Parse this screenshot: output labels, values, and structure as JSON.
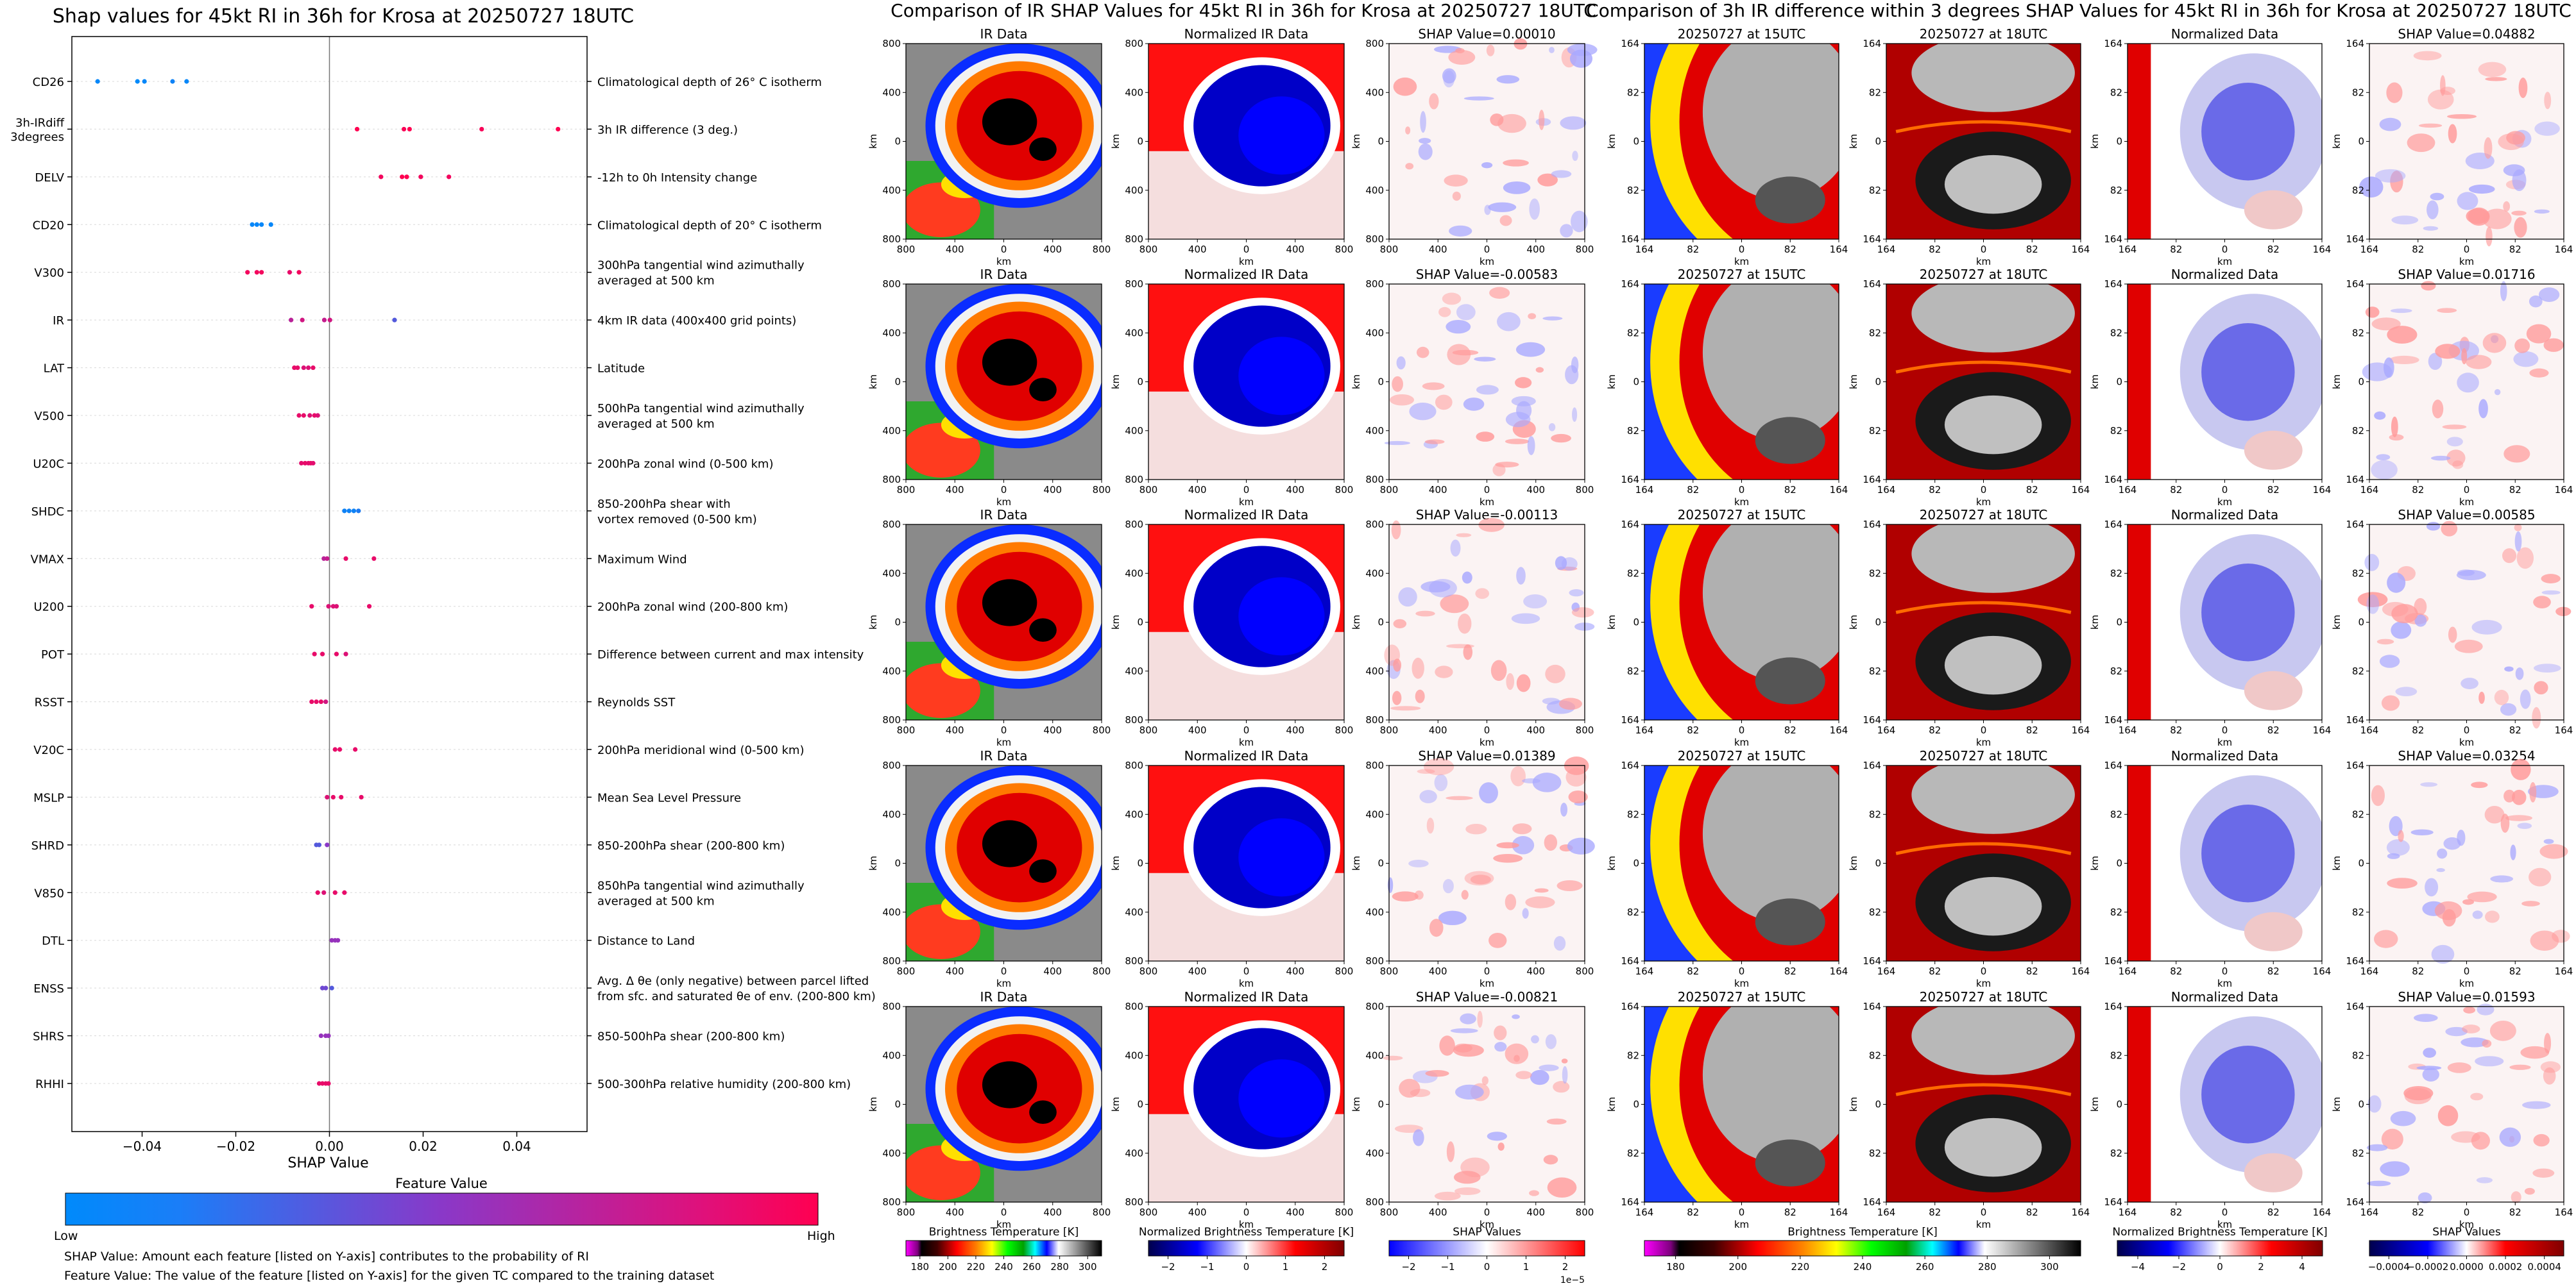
{
  "colors": {
    "feature_low": "#008afb",
    "feature_mid": "#8a38c8",
    "feature_high": "#ff0051",
    "gray_ir": "#808080"
  },
  "shap_panel": {
    "title": "Shap values for 45kt RI in 36h for Krosa at 20250727 18UTC",
    "xlabel": "SHAP Value",
    "colorbar": {
      "title": "Feature Value",
      "low": "Low",
      "high": "High"
    },
    "footnotes": [
      "SHAP Value: Amount each feature [listed on Y-axis] contributes to the probability of RI",
      "Feature Value: The value of the feature [listed on Y-axis] for the given TC compared to the training dataset"
    ]
  },
  "ir_panel": {
    "title": "Comparison of IR SHAP Values for 45kt RI in 36h for Krosa at 20250727 18UTC",
    "col_titles": [
      "IR Data",
      "Normalized IR Data"
    ],
    "shap_titles": [
      "SHAP Value=0.00010",
      "SHAP Value=-0.00583",
      "SHAP Value=-0.00113",
      "SHAP Value=0.01389",
      "SHAP Value=-0.00821"
    ],
    "xticks": [
      "800",
      "400",
      "0",
      "400",
      "800"
    ],
    "yticks": [
      "800",
      "400",
      "0",
      "400",
      "800"
    ],
    "axis_label": "km",
    "colorbars": [
      {
        "label": "Brightness Temperature [K]",
        "ticks": [
          "180",
          "200",
          "220",
          "240",
          "260",
          "280",
          "300"
        ]
      },
      {
        "label": "Normalized Brightness Temperature [K]",
        "ticks": [
          "−2",
          "−1",
          "0",
          "1",
          "2"
        ]
      },
      {
        "label": "SHAP Values",
        "ticks": [
          "−2",
          "−1",
          "0",
          "1",
          "2"
        ],
        "offset": "1e−5"
      }
    ]
  },
  "diff_panel": {
    "title": "Comparison of 3h IR difference within 3 degrees SHAP Values for 45kt RI in 36h for Krosa at 20250727 18UTC",
    "col_titles": [
      "20250727 at 15UTC",
      "20250727 at 18UTC",
      "Normalized Data"
    ],
    "shap_titles": [
      "SHAP Value=0.04882",
      "SHAP Value=0.01716",
      "SHAP Value=0.00585",
      "SHAP Value=0.03254",
      "SHAP Value=0.01593"
    ],
    "xticks": [
      "164",
      "82",
      "0",
      "82",
      "164"
    ],
    "yticks": [
      "164",
      "82",
      "0",
      "82",
      "164"
    ],
    "axis_label": "km",
    "colorbars": [
      {
        "label": "Brightness Temperature [K]",
        "ticks": [
          "180",
          "200",
          "220",
          "240",
          "260",
          "280",
          "300"
        ]
      },
      {
        "label": "Normalized Brightness Temperature [K]",
        "ticks": [
          "−4",
          "−2",
          "0",
          "2",
          "4"
        ]
      },
      {
        "label": "SHAP Values",
        "ticks": [
          "−0.0004",
          "−0.0002",
          "0.0000",
          "0.0002",
          "0.0004"
        ]
      }
    ]
  },
  "chart_data": {
    "type": "scatter",
    "title": "Shap values for 45kt RI in 36h for Krosa at 20250727 18UTC",
    "xlabel": "SHAP Value",
    "xlim": [
      -0.055,
      0.055
    ],
    "xticks": [
      -0.04,
      -0.02,
      0.0,
      0.02,
      0.04
    ],
    "xtick_labels": [
      "−0.04",
      "−0.02",
      "0.00",
      "0.02",
      "0.04"
    ],
    "features": [
      {
        "name": "CD26",
        "description": "Climatological depth of 26° C isotherm",
        "points": [
          [
            -0.0495,
            0.02
          ],
          [
            -0.041,
            0.0
          ],
          [
            -0.0395,
            0.02
          ],
          [
            -0.0335,
            0.05
          ],
          [
            -0.0305,
            0.02
          ]
        ]
      },
      {
        "name": "3h-IRdiff\n3degrees",
        "description": "3h IR difference (3 deg.)",
        "points": [
          [
            0.0059,
            1.0
          ],
          [
            0.0159,
            0.98
          ],
          [
            0.0171,
            1.0
          ],
          [
            0.0325,
            0.97
          ],
          [
            0.0488,
            1.0
          ]
        ]
      },
      {
        "name": "DELV",
        "description": "-12h to 0h Intensity change",
        "points": [
          [
            0.011,
            0.95
          ],
          [
            0.0155,
            1.0
          ],
          [
            0.0165,
            1.0
          ],
          [
            0.0195,
            0.95
          ],
          [
            0.0255,
            0.95
          ]
        ]
      },
      {
        "name": "CD20",
        "description": "Climatological depth of 20° C isotherm",
        "points": [
          [
            -0.0165,
            0.02
          ],
          [
            -0.0155,
            0.02
          ],
          [
            -0.0145,
            0.02
          ],
          [
            -0.0125,
            0.02
          ]
        ]
      },
      {
        "name": "V300",
        "description": "300hPa tangential wind azimuthally\naveraged at 500 km",
        "points": [
          [
            -0.0175,
            0.95
          ],
          [
            -0.0155,
            0.95
          ],
          [
            -0.0145,
            0.95
          ],
          [
            -0.0085,
            0.9
          ],
          [
            -0.0065,
            0.95
          ]
        ]
      },
      {
        "name": "IR",
        "description": "4km IR data (400x400 grid points)",
        "points": [
          [
            -0.0082,
            0.7
          ],
          [
            -0.0058,
            0.8
          ],
          [
            -0.0011,
            0.75
          ],
          [
            0.0001,
            0.8
          ],
          [
            0.0139,
            0.3
          ]
        ]
      },
      {
        "name": "LAT",
        "description": "Latitude",
        "points": [
          [
            -0.0075,
            0.9
          ],
          [
            -0.0068,
            0.9
          ],
          [
            -0.0055,
            0.85
          ],
          [
            -0.0045,
            0.85
          ],
          [
            -0.0035,
            0.9
          ]
        ]
      },
      {
        "name": "V500",
        "description": "500hPa tangential wind azimuthally\naveraged at 500 km",
        "points": [
          [
            -0.0065,
            0.9
          ],
          [
            -0.0055,
            0.9
          ],
          [
            -0.0042,
            0.85
          ],
          [
            -0.0032,
            0.9
          ],
          [
            -0.0025,
            0.85
          ]
        ]
      },
      {
        "name": "U20C",
        "description": "200hPa zonal wind (0-500 km)",
        "points": [
          [
            -0.006,
            0.88
          ],
          [
            -0.0052,
            0.9
          ],
          [
            -0.0045,
            0.88
          ],
          [
            -0.004,
            0.9
          ],
          [
            -0.0035,
            0.88
          ]
        ]
      },
      {
        "name": "SHDC",
        "description": "850-200hPa shear with\nvortex removed (0-500 km)",
        "points": [
          [
            0.0032,
            0.05
          ],
          [
            0.0042,
            0.05
          ],
          [
            0.0052,
            0.05
          ],
          [
            0.0062,
            0.1
          ]
        ]
      },
      {
        "name": "VMAX",
        "description": "Maximum Wind",
        "points": [
          [
            -0.0012,
            0.7
          ],
          [
            -0.0005,
            0.75
          ],
          [
            0.0035,
            0.9
          ],
          [
            0.0095,
            0.9
          ]
        ]
      },
      {
        "name": "U200",
        "description": "200hPa zonal wind (200-800 km)",
        "points": [
          [
            -0.0038,
            0.9
          ],
          [
            -0.0002,
            0.85
          ],
          [
            0.0008,
            0.85
          ],
          [
            0.0015,
            0.85
          ],
          [
            0.0085,
            0.9
          ]
        ]
      },
      {
        "name": "POT",
        "description": "Difference between current and max intensity",
        "points": [
          [
            -0.0032,
            0.9
          ],
          [
            -0.0015,
            0.9
          ],
          [
            0.0015,
            0.9
          ],
          [
            0.0035,
            0.85
          ]
        ]
      },
      {
        "name": "RSST",
        "description": "Reynolds SST",
        "points": [
          [
            -0.0038,
            0.9
          ],
          [
            -0.0028,
            0.9
          ],
          [
            -0.0018,
            0.9
          ],
          [
            -0.0008,
            0.8
          ]
        ]
      },
      {
        "name": "V20C",
        "description": "200hPa meridional wind (0-500 km)",
        "points": [
          [
            0.0012,
            0.9
          ],
          [
            0.0022,
            0.9
          ],
          [
            0.0055,
            0.9
          ]
        ]
      },
      {
        "name": "MSLP",
        "description": "Mean Sea Level Pressure",
        "points": [
          [
            -0.0005,
            0.85
          ],
          [
            0.0008,
            0.9
          ],
          [
            0.0025,
            0.9
          ],
          [
            0.0068,
            0.9
          ]
        ]
      },
      {
        "name": "SHRD",
        "description": "850-200hPa shear (200-800 km)",
        "points": [
          [
            -0.0028,
            0.3
          ],
          [
            -0.0022,
            0.3
          ],
          [
            -0.0005,
            0.5
          ]
        ]
      },
      {
        "name": "V850",
        "description": "850hPa tangential wind azimuthally\naveraged at 500 km",
        "points": [
          [
            -0.0025,
            0.9
          ],
          [
            -0.0012,
            0.85
          ],
          [
            0.0012,
            0.9
          ],
          [
            0.0032,
            0.9
          ]
        ]
      },
      {
        "name": "DTL",
        "description": "Distance to Land",
        "points": [
          [
            0.0005,
            0.55
          ],
          [
            0.0012,
            0.55
          ],
          [
            0.0018,
            0.55
          ]
        ]
      },
      {
        "name": "ENSS",
        "description": "Avg. Δ θe (only negative) between parcel lifted\nfrom sfc. and saturated θe of env. (200-800 km)",
        "points": [
          [
            -0.0015,
            0.4
          ],
          [
            -0.0008,
            0.4
          ],
          [
            0.0005,
            0.3
          ]
        ]
      },
      {
        "name": "SHRS",
        "description": "850-500hPa shear (200-800 km)",
        "points": [
          [
            -0.0018,
            0.55
          ],
          [
            -0.0008,
            0.55
          ],
          [
            -0.0002,
            0.55
          ]
        ]
      },
      {
        "name": "RHHI",
        "description": "500-300hPa relative humidity (200-800 km)",
        "points": [
          [
            -0.0022,
            0.9
          ],
          [
            -0.0015,
            0.9
          ],
          [
            -0.0008,
            0.9
          ],
          [
            -0.0002,
            0.9
          ]
        ]
      }
    ]
  }
}
